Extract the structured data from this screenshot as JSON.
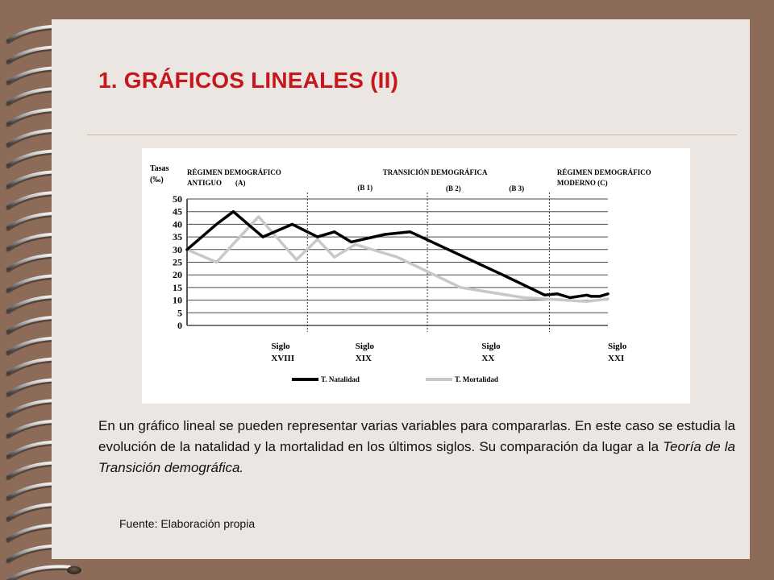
{
  "slide": {
    "title": "1. GRÁFICOS LINEALES (II)",
    "paragraph_main": "En un gráfico lineal se pueden representar varias variables para compararlas. En este caso se estudia la evolución de la natalidad y la mortalidad en los últimos siglos. Su comparación da lugar a la ",
    "paragraph_emphasis": "Teoría de la Transición demográfica.",
    "source": "Fuente: Elaboración propia"
  },
  "colors": {
    "page_background": "#ebe6e2",
    "border": "#8c6c59",
    "title": "#c8171c",
    "natalidad": "#000000",
    "mortalidad": "#c8c8c8"
  },
  "chart_data": {
    "type": "line",
    "ylabel": "Tasas (‰)",
    "ylim": [
      0,
      50
    ],
    "yticks": [
      0,
      5,
      10,
      15,
      20,
      25,
      30,
      35,
      40,
      45,
      50
    ],
    "xlim": [
      0,
      100
    ],
    "grid": true,
    "x_tick_labels": [
      {
        "x": 20,
        "line1": "Siglo",
        "line2": "XVIII"
      },
      {
        "x": 40,
        "line1": "Siglo",
        "line2": "XIX"
      },
      {
        "x": 70,
        "line1": "Siglo",
        "line2": "XX"
      },
      {
        "x": 100,
        "line1": "Siglo",
        "line2": "XXI"
      }
    ],
    "dividers_x": [
      28.6,
      57.1,
      86.1
    ],
    "annotations": [
      {
        "x": 0,
        "row": 0,
        "text": "RÉGIMEN DEMOGRÁFICO"
      },
      {
        "x": 0,
        "row": 1,
        "text": "ANTIGUO"
      },
      {
        "x": 11.5,
        "row": 1,
        "text": "(A)"
      },
      {
        "x": 46.5,
        "row": 0,
        "text": "TRANSICIÓN DEMOGRÁFICA"
      },
      {
        "x": 40.5,
        "row": 2,
        "text": "(B 1)"
      },
      {
        "x": 61.5,
        "row": 3,
        "text": "(B 2)"
      },
      {
        "x": 76.5,
        "row": 3,
        "text": "(B 3)"
      },
      {
        "x": 87.9,
        "row": 0,
        "text": "RÉGIMEN DEMOGRÁFICO"
      },
      {
        "x": 87.9,
        "row": 1,
        "text": "MODERNO (C)"
      }
    ],
    "series": [
      {
        "name": "T. Natalidad",
        "color": "#000000",
        "x": [
          0,
          7,
          11,
          18,
          25,
          31,
          35,
          39,
          47,
          53,
          75,
          85,
          88,
          91,
          95,
          96,
          98,
          100
        ],
        "y": [
          30,
          40,
          45,
          35,
          40,
          35,
          37,
          33,
          36,
          37,
          20,
          12,
          12.5,
          11,
          12,
          11.5,
          11.5,
          12.5
        ]
      },
      {
        "name": "T. Mortalidad",
        "color": "#c8c8c8",
        "x": [
          0,
          7,
          17,
          26,
          31,
          35,
          40,
          50,
          65,
          80,
          90,
          95,
          100
        ],
        "y": [
          30,
          25,
          43,
          26,
          34,
          27,
          32,
          27,
          15,
          11,
          10,
          9.5,
          10.5
        ]
      }
    ],
    "legend": [
      {
        "label": "T. Natalidad",
        "color": "#000000"
      },
      {
        "label": "T. Mortalidad",
        "color": "#c8c8c8"
      }
    ],
    "legend_position": "bottom"
  }
}
